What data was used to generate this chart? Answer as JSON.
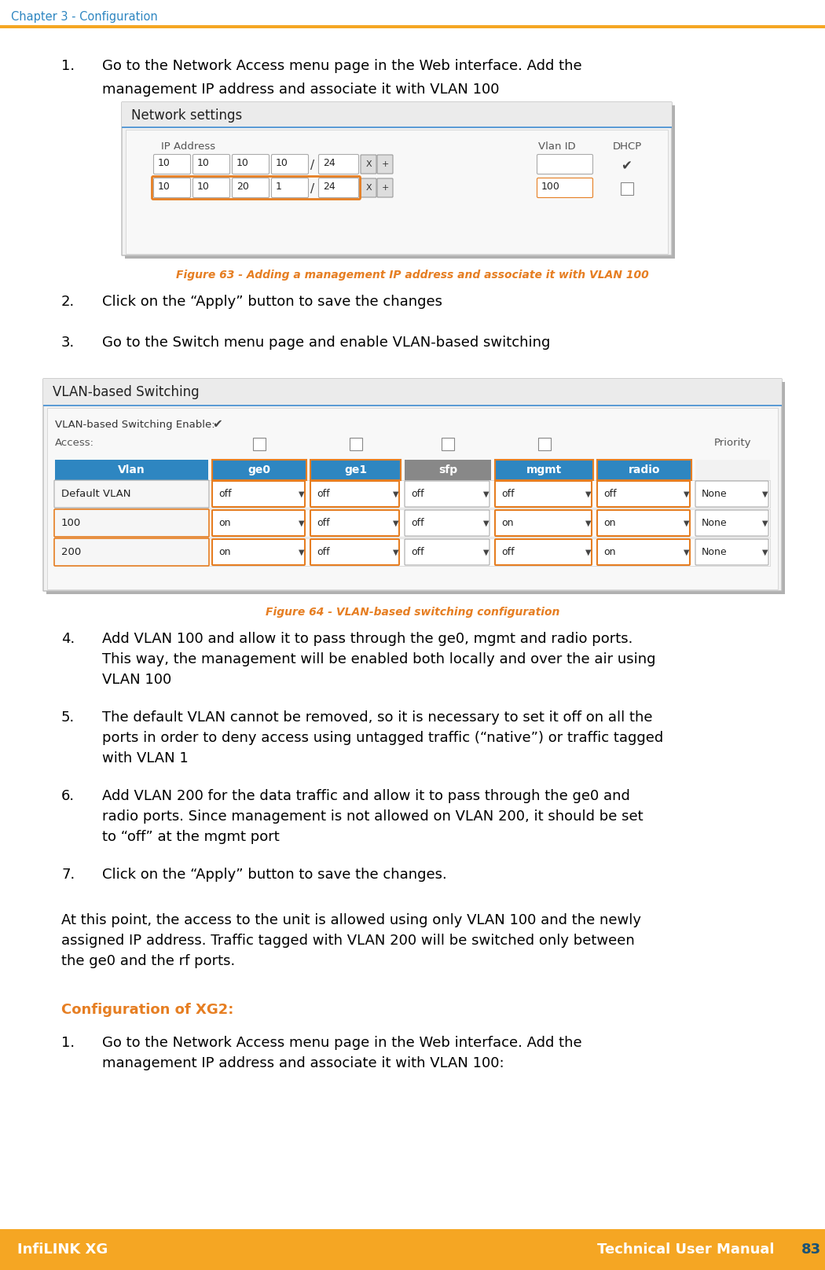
{
  "chapter_header": "Chapter 3 - Configuration",
  "header_color": "#2E86C1",
  "orange_line_color": "#F5A623",
  "footer_bg_color": "#F5A623",
  "footer_left": "InfiLINK XG",
  "footer_right": "Technical User Manual",
  "footer_page": "83",
  "footer_text_color": "#FFFFFF",
  "footer_page_color": "#1A5276",
  "body_bg": "#FFFFFF",
  "fig63_caption": "Figure 63 - Adding a management IP address and associate it with VLAN 100",
  "fig64_caption": "Figure 64 - VLAN-based switching configuration",
  "caption_color": "#E67E22",
  "vlan_header_color": "#2E86C1",
  "orange_border": "#E67E22",
  "config_xg2_title": "Configuration of XG2:",
  "config_xg2_color": "#E67E22"
}
